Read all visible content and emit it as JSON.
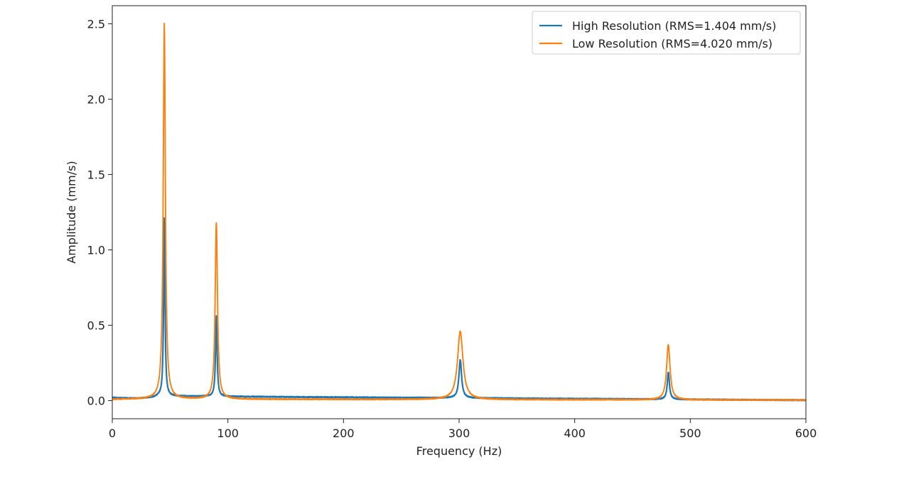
{
  "chart_data": {
    "type": "line",
    "title": "",
    "xlabel": "Frequency (Hz)",
    "ylabel": "Amplitude (mm/s)",
    "xlim": [
      0,
      600
    ],
    "ylim": [
      -0.12,
      2.62
    ],
    "xticks": [
      0,
      100,
      200,
      300,
      400,
      500,
      600
    ],
    "yticks": [
      0.0,
      0.5,
      1.0,
      1.5,
      2.0,
      2.5
    ],
    "xtick_labels": [
      "0",
      "100",
      "200",
      "300",
      "400",
      "500",
      "600"
    ],
    "ytick_labels": [
      "0.0",
      "0.5",
      "1.0",
      "1.5",
      "2.0",
      "2.5"
    ],
    "grid": false,
    "legend_position": "top-right",
    "baseline": {
      "High Resolution (RMS=1.404 mm/s)": [
        [
          0,
          0.02
        ],
        [
          20,
          0.015
        ],
        [
          35,
          0.02
        ],
        [
          40,
          0.03
        ],
        [
          600,
          0.003
        ]
      ],
      "Low Resolution (RMS=4.020 mm/s)": [
        [
          0,
          0.008
        ],
        [
          35,
          0.01
        ],
        [
          600,
          0.004
        ]
      ]
    },
    "series": [
      {
        "name": "High Resolution (RMS=1.404 mm/s)",
        "color": "#1f77b4",
        "peaks": [
          {
            "x": 45,
            "y": 1.21,
            "width": 0.7
          },
          {
            "x": 90,
            "y": 0.56,
            "width": 0.8
          },
          {
            "x": 301,
            "y": 0.27,
            "width": 1.4
          },
          {
            "x": 481,
            "y": 0.19,
            "width": 1.1
          }
        ]
      },
      {
        "name": "Low Resolution (RMS=4.020 mm/s)",
        "color": "#ff7f0e",
        "peaks": [
          {
            "x": 45,
            "y": 2.5,
            "width": 1.1
          },
          {
            "x": 90,
            "y": 1.18,
            "width": 1.2
          },
          {
            "x": 301,
            "y": 0.46,
            "width": 2.8
          },
          {
            "x": 481,
            "y": 0.37,
            "width": 1.8
          }
        ]
      }
    ]
  }
}
